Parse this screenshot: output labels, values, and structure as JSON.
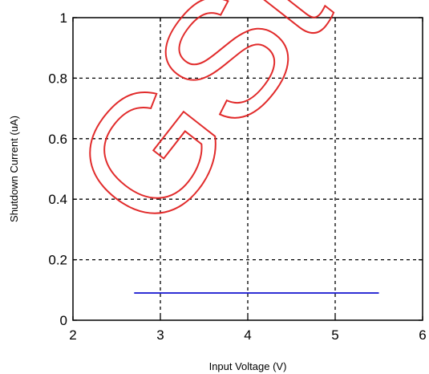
{
  "chart_data": {
    "type": "line",
    "title": "",
    "xlabel": "Input Voltage (V)",
    "ylabel": "Shutdown Current (uA)",
    "xlim": [
      2,
      6
    ],
    "ylim": [
      0,
      1
    ],
    "x_ticks": [
      2,
      3,
      4,
      5,
      6
    ],
    "y_ticks": [
      0,
      0.2,
      0.4,
      0.6,
      0.8,
      1
    ],
    "x_tick_labels": [
      "2",
      "3",
      "4",
      "5",
      "6"
    ],
    "y_tick_labels": [
      "0",
      "0.2",
      "0.4",
      "0.6",
      "0.8",
      "1"
    ],
    "grid": true,
    "grid_style": "dashed",
    "series": [
      {
        "color": "#0000cc",
        "x": [
          2.7,
          5.5
        ],
        "y": [
          0.09,
          0.09
        ]
      }
    ]
  },
  "watermark": {
    "text": "GSte",
    "color": "#e02020"
  }
}
